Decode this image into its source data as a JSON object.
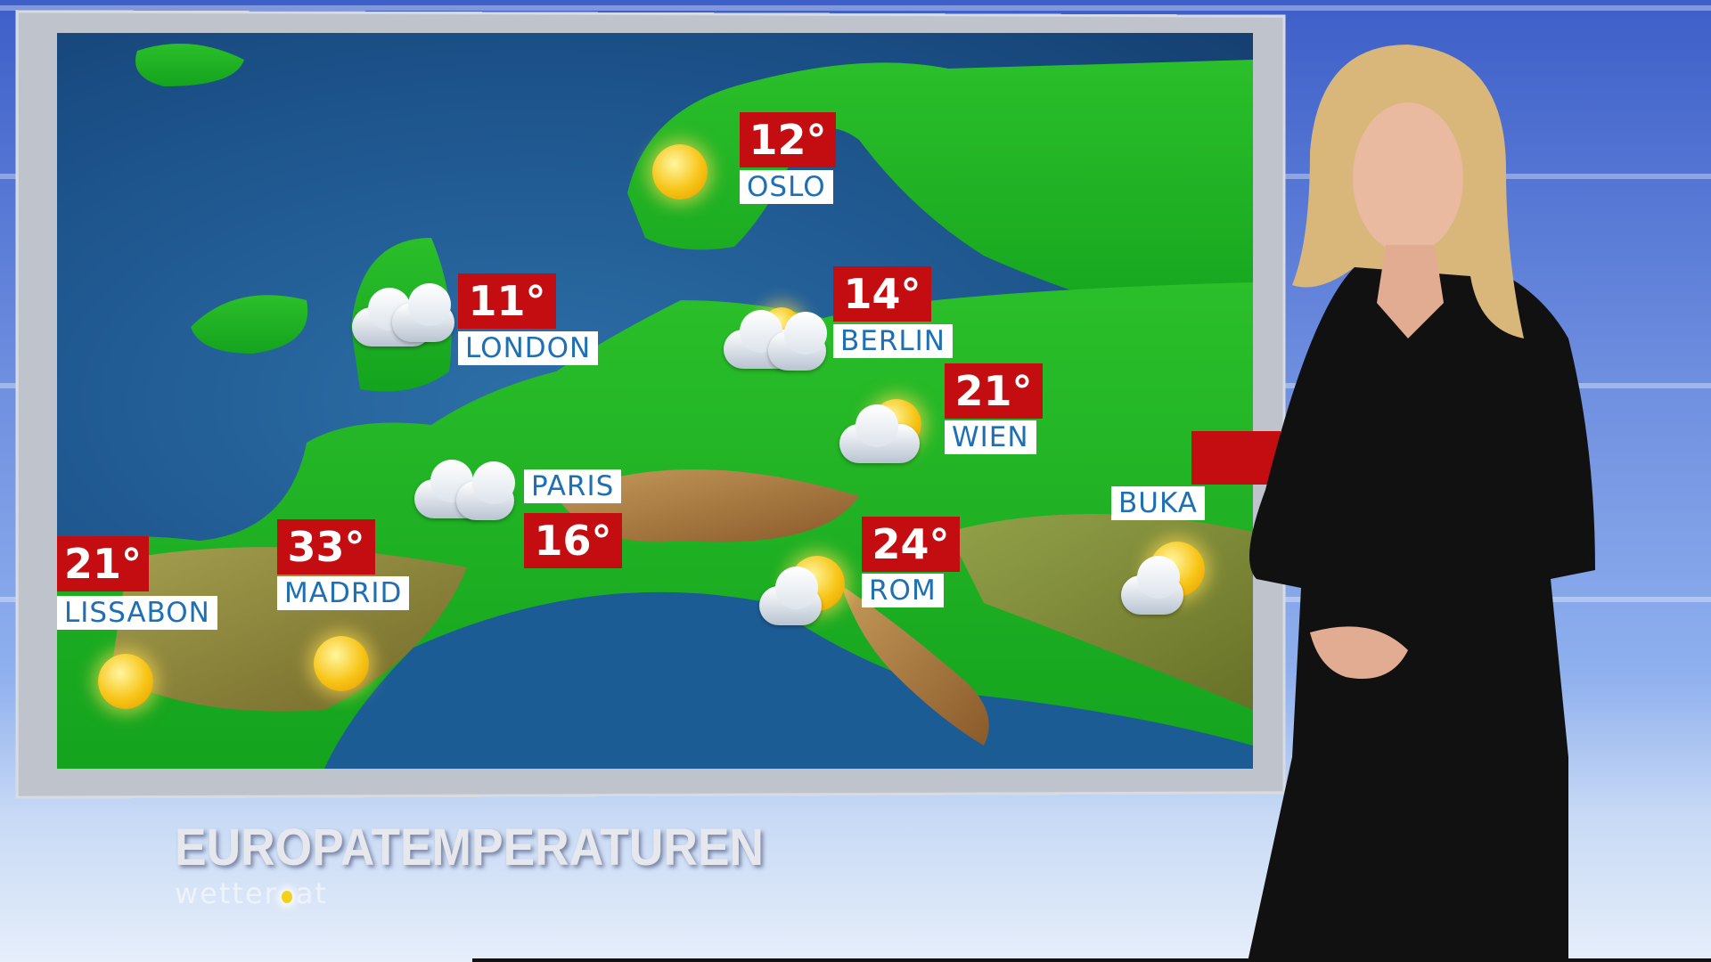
{
  "graphic": {
    "title": "EUROPATEMPERATUREN",
    "logo": "wetter.at"
  },
  "colors": {
    "temp_box": "#c40d10",
    "city_text": "#1f6fb5",
    "sea": "#1a4f86",
    "land": "#1fb52a"
  },
  "cities": [
    {
      "name": "OSLO",
      "temp": "12°",
      "weather": "sun-icon"
    },
    {
      "name": "LONDON",
      "temp": "11°",
      "weather": "cloud-rain-icon"
    },
    {
      "name": "BERLIN",
      "temp": "14°",
      "weather": "sun-cloud-icon"
    },
    {
      "name": "WIEN",
      "temp": "21°",
      "weather": "sun-cloud-icon"
    },
    {
      "name": "PARIS",
      "temp": "16°",
      "weather": "cloud-rain-icon"
    },
    {
      "name": "LISSABON",
      "temp": "21°",
      "weather": "sun-icon"
    },
    {
      "name": "MADRID",
      "temp": "33°",
      "weather": "sun-icon"
    },
    {
      "name": "ROM",
      "temp": "24°",
      "weather": "sun-cloud-icon"
    },
    {
      "name": "BUKA",
      "temp": "",
      "weather": "sun-cloud-icon"
    }
  ]
}
